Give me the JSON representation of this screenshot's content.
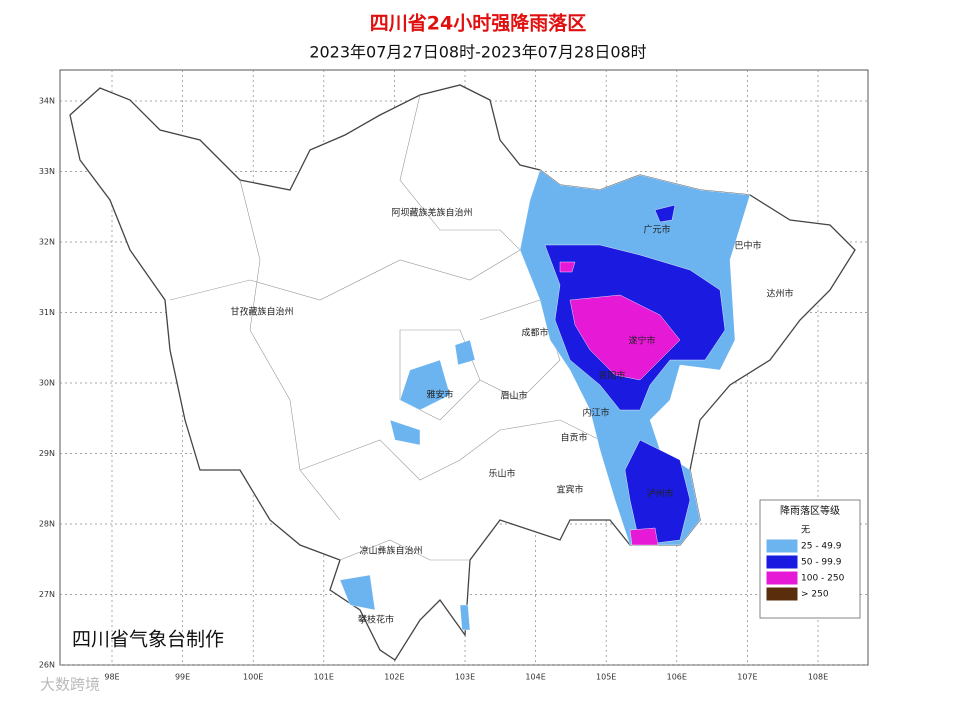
{
  "header": {
    "title": "四川省24小时强降雨落区",
    "subtitle": "2023年07月27日08时-2023年07月28日08时"
  },
  "map": {
    "lat_labels": [
      "34N",
      "33N",
      "32N",
      "31N",
      "30N",
      "29N",
      "28N",
      "27N",
      "26N"
    ],
    "lon_labels": [
      "98E",
      "99E",
      "100E",
      "101E",
      "102E",
      "103E",
      "104E",
      "105E",
      "106E",
      "107E",
      "108E"
    ],
    "places": [
      "阿坝藏族羌族自治州",
      "甘孜藏族自治州",
      "凉山彝族自治州",
      "雅安市",
      "乐山市",
      "眉山市",
      "成都市",
      "遂宁市",
      "资阳市",
      "内江市",
      "自贡市",
      "宜宾市",
      "泸州市",
      "广元市",
      "巴中市",
      "达州市",
      "攀枝花市"
    ],
    "credit": "四川省气象台制作"
  },
  "legend": {
    "title": "降雨落区等级",
    "items": [
      {
        "label": "无",
        "color": "#ffffff"
      },
      {
        "label": "25 - 49.9",
        "color": "#6cb4f0"
      },
      {
        "label": "50 - 99.9",
        "color": "#1a1ae0"
      },
      {
        "label": "100 - 250",
        "color": "#e619d6"
      },
      {
        "label": "> 250",
        "color": "#5a2d0c"
      }
    ]
  },
  "watermark": "大数跨境"
}
